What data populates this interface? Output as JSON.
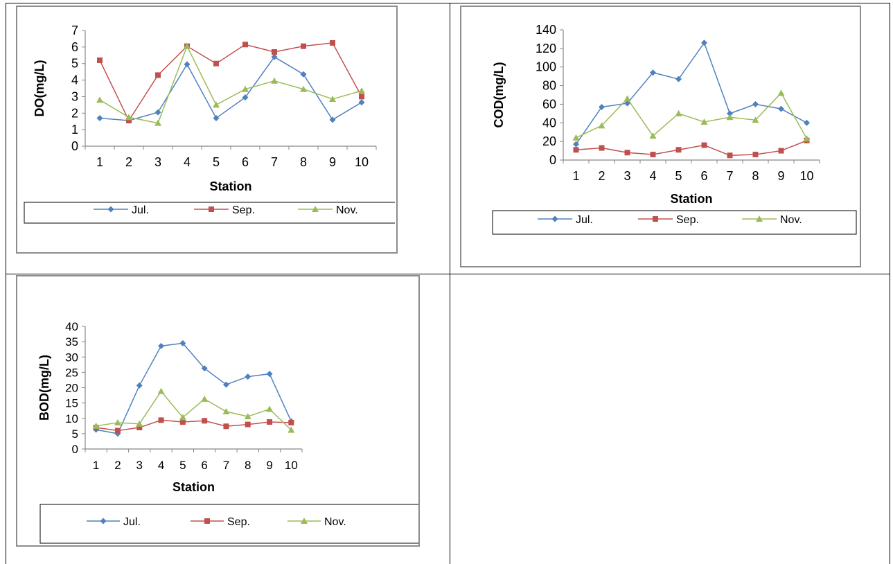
{
  "colors": {
    "jul": "#4f81bd",
    "sep": "#c0504d",
    "nov": "#9bbb59",
    "axis": "#868686"
  },
  "legend_labels": {
    "jul": "Jul.",
    "sep": "Sep.",
    "nov": "Nov."
  },
  "chart_data": [
    {
      "type": "line",
      "ylabel": "DO(mg/L)",
      "xlabel": "Station",
      "categories": [
        "1",
        "2",
        "3",
        "4",
        "5",
        "6",
        "7",
        "8",
        "9",
        "10"
      ],
      "yticks": [
        "0",
        "1",
        "2",
        "3",
        "4",
        "5",
        "6",
        "7"
      ],
      "ylim": [
        0,
        7
      ],
      "legend": "bottom",
      "series": [
        {
          "name": "Jul.",
          "marker": "diamond",
          "values": [
            1.7,
            1.55,
            2.05,
            4.95,
            1.7,
            2.95,
            5.4,
            4.35,
            1.6,
            2.65
          ]
        },
        {
          "name": "Sep.",
          "marker": "square",
          "values": [
            5.2,
            1.55,
            4.3,
            6.05,
            5.0,
            6.15,
            5.7,
            6.05,
            6.25,
            3.0
          ]
        },
        {
          "name": "Nov.",
          "marker": "triangle",
          "values": [
            2.8,
            1.75,
            1.4,
            6.05,
            2.5,
            3.45,
            3.95,
            3.45,
            2.85,
            3.35
          ]
        }
      ]
    },
    {
      "type": "line",
      "ylabel": "COD(mg/L)",
      "xlabel": "Station",
      "categories": [
        "1",
        "2",
        "3",
        "4",
        "5",
        "6",
        "7",
        "8",
        "9",
        "10"
      ],
      "yticks": [
        "0",
        "20",
        "40",
        "60",
        "80",
        "100",
        "120",
        "140"
      ],
      "ylim": [
        0,
        140
      ],
      "legend": "bottom",
      "series": [
        {
          "name": "Jul.",
          "marker": "diamond",
          "values": [
            17,
            57,
            61,
            94,
            87,
            126,
            50,
            60,
            55,
            40
          ]
        },
        {
          "name": "Sep.",
          "marker": "square",
          "values": [
            11,
            13,
            8,
            6,
            11,
            16,
            5,
            6,
            10,
            21
          ]
        },
        {
          "name": "Nov.",
          "marker": "triangle",
          "values": [
            24,
            37,
            66,
            26,
            50,
            41,
            46,
            43,
            72,
            23
          ]
        }
      ]
    },
    {
      "type": "line",
      "ylabel": "BOD(mg/L)",
      "xlabel": "Station",
      "categories": [
        "1",
        "2",
        "3",
        "4",
        "5",
        "6",
        "7",
        "8",
        "9",
        "10"
      ],
      "yticks": [
        "0",
        "5",
        "10",
        "15",
        "20",
        "25",
        "30",
        "35",
        "40"
      ],
      "ylim": [
        0,
        40
      ],
      "legend": "bottom",
      "series": [
        {
          "name": "Jul.",
          "marker": "diamond",
          "values": [
            6.3,
            5.0,
            20.7,
            33.6,
            34.5,
            26.3,
            21.0,
            23.6,
            24.5,
            9.0
          ]
        },
        {
          "name": "Sep.",
          "marker": "square",
          "values": [
            7.0,
            6.0,
            7.0,
            9.4,
            8.8,
            9.2,
            7.4,
            8.0,
            8.8,
            8.6
          ]
        },
        {
          "name": "Nov.",
          "marker": "triangle",
          "values": [
            7.5,
            8.6,
            8.2,
            18.8,
            10.3,
            16.3,
            12.2,
            10.6,
            13.0,
            6.2
          ]
        }
      ]
    }
  ]
}
